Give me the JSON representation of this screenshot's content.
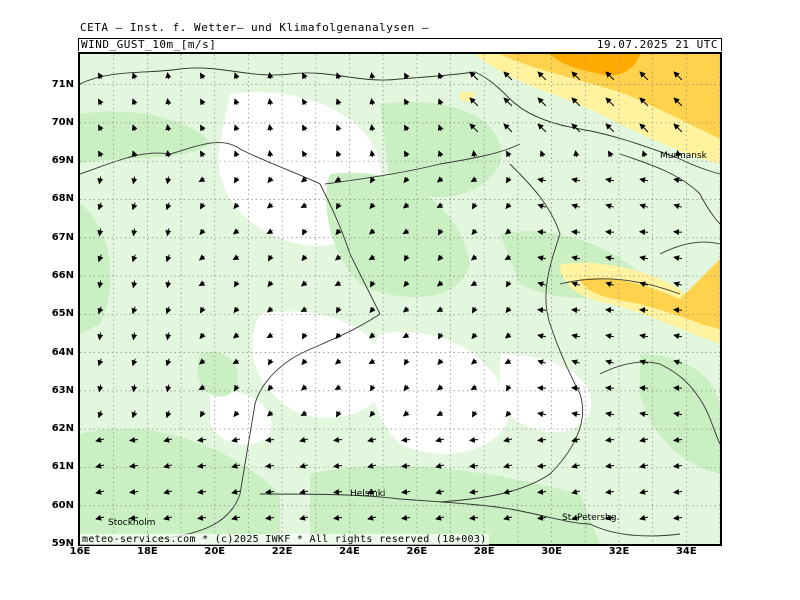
{
  "header": {
    "organization": "CETA — Inst. f. Wetter— und Klimafolgenanalysen —",
    "parameter": "WIND_GUST_10m_[m/s]",
    "valid_time": "19.07.2025 21 UTC"
  },
  "footer": {
    "credit": "meteo-services.com * (c)2025 IWKF * All rights reserved (18+003)"
  },
  "map": {
    "lat_range": [
      59,
      71.8
    ],
    "lon_range": [
      16,
      35
    ],
    "lat_labels": [
      "71N",
      "70N",
      "69N",
      "68N",
      "67N",
      "66N",
      "65N",
      "64N",
      "63N",
      "62N",
      "61N",
      "60N",
      "59N"
    ],
    "lon_labels": [
      "16E",
      "18E",
      "20E",
      "22E",
      "24E",
      "26E",
      "28E",
      "30E",
      "32E",
      "34E"
    ],
    "cities": [
      {
        "name": "Murmansk"
      },
      {
        "name": "Helsinki"
      },
      {
        "name": "Stockholm"
      },
      {
        "name": "St. Petersbg."
      }
    ],
    "colors": {
      "calm": "#ffffff",
      "light": "#e2f7dd",
      "moderate": "#c9efc2",
      "yellow": "#fff3a0",
      "gold": "#ffd24d",
      "orange": "#ffaa00",
      "grid": "#888888",
      "border": "#000000",
      "coast": "#333333"
    }
  }
}
